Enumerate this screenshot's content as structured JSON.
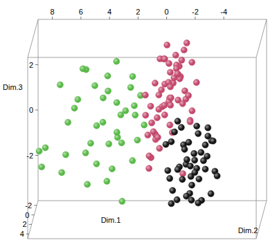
{
  "chart_data": {
    "type": "scatter3d",
    "x_label": "Dim.1",
    "y_label": "Dim.2",
    "z_label": "Dim.3",
    "xlim": [
      9,
      -7
    ],
    "xticks": [
      8,
      6,
      4,
      2,
      0,
      -2,
      -4
    ],
    "ylim": [
      -3,
      5
    ],
    "yticks": [
      -2,
      0,
      2,
      4
    ],
    "zlim": [
      -4,
      4
    ],
    "zticks": [
      2,
      0,
      -2
    ],
    "series": [
      {
        "color": "#58b947",
        "x": [
          7.9,
          8.4,
          8.1,
          6.5,
          6.8,
          5.9,
          5.2,
          4.8,
          4.1,
          3.6,
          3.2,
          2.7,
          2.2,
          1.8,
          1.5,
          5.5,
          4.4,
          3.9,
          3.0,
          2.5,
          6.1,
          7.2,
          4.9,
          3.4,
          2.9,
          1.9,
          1.2,
          5.0,
          4.2,
          3.7,
          2.3,
          6.6,
          5.7,
          4.6,
          3.3,
          2.0,
          1.6,
          4.0,
          3.1,
          2.6
        ],
        "y": [
          3.5,
          2.8,
          4.2,
          1.5,
          3.0,
          0.5,
          2.2,
          -0.5,
          1.0,
          3.4,
          0.2,
          2.0,
          -1.0,
          1.4,
          0.6,
          -1.5,
          2.6,
          -0.8,
          1.8,
          3.8,
          0.9,
          -0.2,
          1.6,
          -1.8,
          0.4,
          2.4,
          1.1,
          3.1,
          -0.3,
          0.8,
          -0.6,
          2.1,
          -1.2,
          0.3,
          2.7,
          -0.1,
          1.9,
          -1.6,
          1.2,
          0.0
        ],
        "z": [
          -0.3,
          -0.6,
          -1.0,
          0.4,
          -1.5,
          1.2,
          -0.8,
          1.6,
          0.3,
          -1.8,
          1.0,
          -0.4,
          1.9,
          0.7,
          1.4,
          2.1,
          -1.2,
          1.3,
          -0.2,
          -2.6,
          0.9,
          1.7,
          -0.5,
          2.4,
          0.5,
          -1.1,
          0.2,
          -2.0,
          1.1,
          -0.7,
          1.5,
          -0.9,
          2.2,
          0.0,
          -1.4,
          0.8,
          -0.3,
          1.8,
          -0.1,
          0.6
        ]
      },
      {
        "color": "#c4486c",
        "x": [
          -0.5,
          -1.2,
          0.3,
          -0.8,
          -1.6,
          0.8,
          -0.2,
          -1.0,
          0.5,
          -1.9,
          -0.6,
          0.1,
          -1.4,
          1.1,
          -0.9,
          0.4,
          -0.3,
          -2.1,
          -1.1,
          0.7,
          -0.4,
          -1.7,
          0.2,
          -0.7,
          1.3,
          -1.3,
          -0.1,
          0.9,
          -2.3,
          -0.9,
          0.0,
          -1.5,
          0.6,
          -0.6,
          -1.0,
          0.3,
          -1.8,
          -0.2,
          1.0,
          -1.2,
          -0.5,
          0.5,
          -2.0,
          -0.8,
          0.1,
          -1.4,
          0.8,
          -0.3,
          -1.1,
          0.4,
          -0.7,
          -1.6,
          0.2,
          -0.4,
          1.2,
          -1.9,
          -0.1,
          0.6,
          -1.3,
          -0.6
        ],
        "y": [
          0.2,
          -0.5,
          1.0,
          -1.2,
          0.6,
          -0.3,
          1.5,
          -0.8,
          0.4,
          -1.6,
          1.1,
          -0.1,
          0.8,
          -0.6,
          1.8,
          -1.4,
          0.0,
          0.5,
          -1.0,
          1.3,
          -0.4,
          0.9,
          -1.8,
          0.3,
          -0.9,
          1.6,
          -0.2,
          0.7,
          -0.7,
          1.2,
          -1.5,
          0.1,
          -1.1,
          1.9,
          0.4,
          -0.3,
          -1.3,
          0.6,
          -0.5,
          1.4,
          -0.8,
          0.2,
          0.9,
          -1.7,
          1.0,
          -0.1,
          0.5,
          -1.2,
          0.8,
          -0.6,
          1.7,
          -0.9,
          0.3,
          -1.4,
          0.0,
          1.1,
          -0.4,
          0.6,
          -1.0,
          0.7
        ],
        "z": [
          1.2,
          2.0,
          0.5,
          2.8,
          1.6,
          0.0,
          3.2,
          0.9,
          1.9,
          2.4,
          0.2,
          1.5,
          3.0,
          -0.6,
          2.2,
          1.0,
          3.5,
          0.7,
          1.8,
          -1.2,
          2.6,
          1.3,
          0.4,
          -0.3,
          1.1,
          2.9,
          0.8,
          -1.8,
          1.7,
          2.3,
          0.1,
          3.3,
          -0.9,
          1.4,
          2.7,
          0.6,
          -0.1,
          1.9,
          -1.5,
          2.5,
          1.0,
          -0.4,
          0.3,
          2.1,
          3.1,
          -2.2,
          0.9,
          1.6,
          2.4,
          -0.7,
          1.2,
          3.4,
          -1.0,
          2.0,
          0.4,
          1.5,
          2.8,
          -0.2,
          0.7,
          1.8
        ]
      },
      {
        "color": "#151515",
        "x": [
          -2.1,
          -1.5,
          -2.8,
          -0.8,
          -3.2,
          -1.9,
          -2.4,
          -1.1,
          -3.6,
          -2.0,
          -0.5,
          -2.7,
          -1.7,
          -3.0,
          -1.3,
          -2.3,
          -0.9,
          -3.4,
          -1.6,
          -2.5,
          -0.3,
          -1.9,
          -2.9,
          -1.2,
          -3.8,
          -2.2,
          -0.7,
          -1.4,
          -2.6,
          -3.1,
          -1.0,
          -2.0,
          -1.8,
          -3.3,
          -0.6,
          -2.4,
          -1.5,
          -2.9,
          -0.2,
          -1.1,
          -3.5,
          -2.1,
          -1.6,
          -2.7,
          -0.4
        ],
        "y": [
          -1.0,
          0.5,
          -2.0,
          -0.3,
          1.0,
          -1.5,
          0.2,
          -2.2,
          -0.6,
          1.2,
          -1.1,
          -0.2,
          0.8,
          -1.8,
          -0.8,
          0.6,
          -1.6,
          0.3,
          -2.4,
          -0.4,
          0.9,
          -1.2,
          -0.9,
          0.4,
          -0.1,
          -2.0,
          0.1,
          -1.4,
          1.3,
          -0.7,
          -0.5,
          0.7,
          -1.9,
          -1.3,
          0.0,
          -0.9,
          -2.1,
          0.5,
          -1.7,
          1.1,
          -0.3,
          -1.5,
          -0.6,
          0.2,
          -1.0
        ],
        "z": [
          -1.5,
          -0.8,
          -2.4,
          -0.4,
          -1.2,
          -3.0,
          -1.9,
          -0.6,
          -2.2,
          -2.8,
          -1.0,
          -3.4,
          -1.6,
          -0.9,
          -2.6,
          -2.0,
          -0.2,
          -3.0,
          -1.3,
          -2.5,
          -0.7,
          -3.6,
          -1.1,
          -1.8,
          -2.3,
          -0.5,
          -2.9,
          -1.4,
          -3.2,
          -0.3,
          -2.1,
          -1.7,
          -2.7,
          -1.0,
          -3.5,
          -0.6,
          -2.0,
          -1.5,
          -2.4,
          -3.1,
          -0.8,
          -1.9,
          -3.3,
          -1.2,
          -2.6
        ]
      }
    ]
  }
}
